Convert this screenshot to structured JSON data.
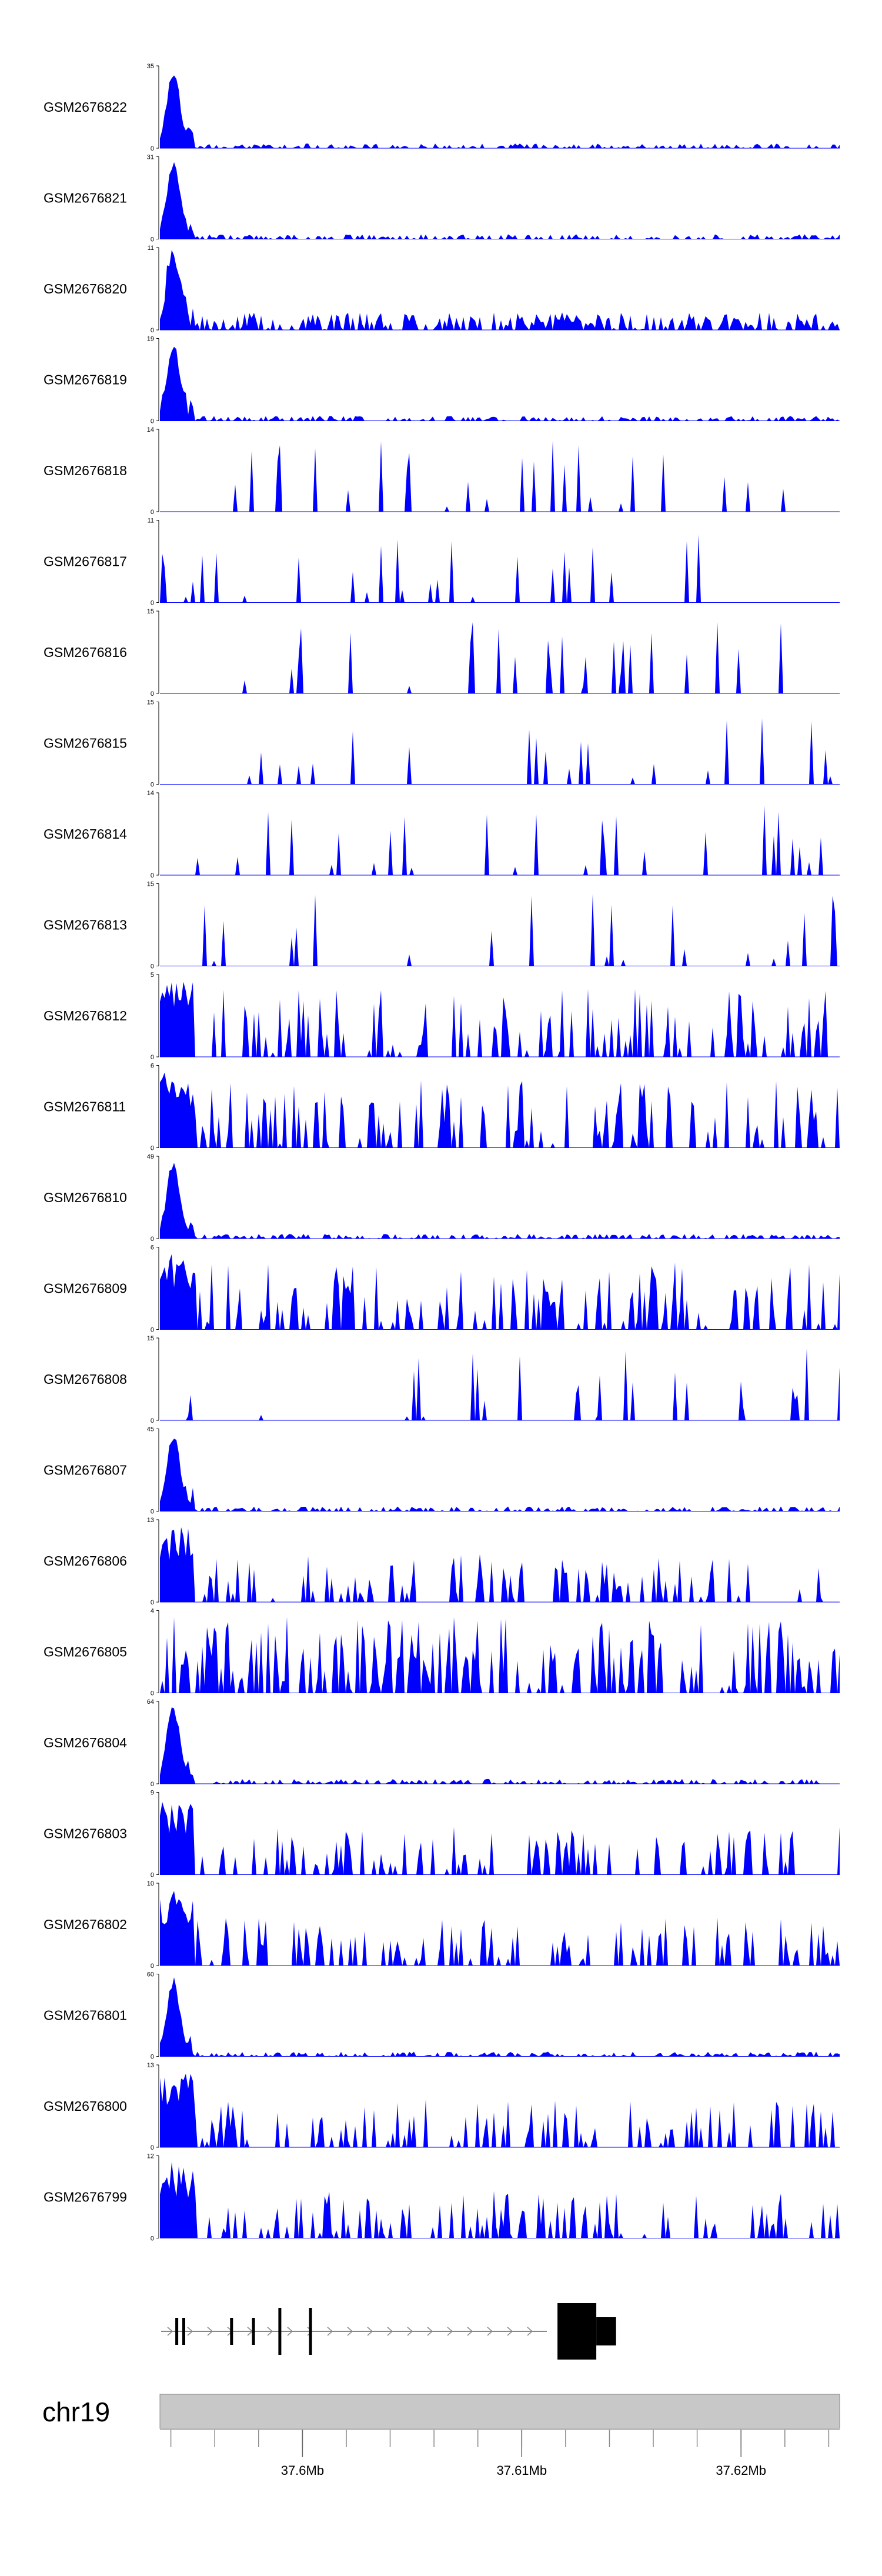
{
  "chart_data": {
    "type": "area",
    "title": "",
    "xlabel": "",
    "ylabel": "",
    "color": "#0000ff",
    "x_range_mb": [
      37.5935,
      37.6245
    ],
    "tracks": [
      {
        "name": "GSM2676822",
        "ymax": "35",
        "profile": "peak"
      },
      {
        "name": "GSM2676821",
        "ymax": "31",
        "profile": "peak"
      },
      {
        "name": "GSM2676820",
        "ymax": "11",
        "profile": "peak-noisy"
      },
      {
        "name": "GSM2676819",
        "ymax": "19",
        "profile": "peak"
      },
      {
        "name": "GSM2676818",
        "ymax": "14",
        "profile": "sparse"
      },
      {
        "name": "GSM2676817",
        "ymax": "11",
        "profile": "sparse"
      },
      {
        "name": "GSM2676816",
        "ymax": "15",
        "profile": "sparse"
      },
      {
        "name": "GSM2676815",
        "ymax": "15",
        "profile": "very-sparse"
      },
      {
        "name": "GSM2676814",
        "ymax": "14",
        "profile": "sparse"
      },
      {
        "name": "GSM2676813",
        "ymax": "15",
        "profile": "sparse"
      },
      {
        "name": "GSM2676812",
        "ymax": "5",
        "profile": "dense"
      },
      {
        "name": "GSM2676811",
        "ymax": "6",
        "profile": "dense"
      },
      {
        "name": "GSM2676810",
        "ymax": "49",
        "profile": "peak"
      },
      {
        "name": "GSM2676809",
        "ymax": "6",
        "profile": "dense"
      },
      {
        "name": "GSM2676808",
        "ymax": "15",
        "profile": "sparse"
      },
      {
        "name": "GSM2676807",
        "ymax": "45",
        "profile": "peak"
      },
      {
        "name": "GSM2676806",
        "ymax": "13",
        "profile": "medium"
      },
      {
        "name": "GSM2676805",
        "ymax": "4",
        "profile": "very-dense"
      },
      {
        "name": "GSM2676804",
        "ymax": "64",
        "profile": "peak"
      },
      {
        "name": "GSM2676803",
        "ymax": "9",
        "profile": "medium"
      },
      {
        "name": "GSM2676802",
        "ymax": "10",
        "profile": "medium"
      },
      {
        "name": "GSM2676801",
        "ymax": "60",
        "profile": "peak"
      },
      {
        "name": "GSM2676800",
        "ymax": "13",
        "profile": "medium"
      },
      {
        "name": "GSM2676799",
        "ymax": "12",
        "profile": "medium"
      }
    ],
    "gene_model": {
      "strand": "+",
      "exons_mb": [
        [
          37.5942,
          37.59427
        ],
        [
          37.59452,
          37.5946
        ],
        [
          37.5967,
          37.59677
        ],
        [
          37.5977,
          37.5978
        ],
        [
          37.5989,
          37.599
        ],
        [
          37.6003,
          37.60043
        ],
        [
          37.61163,
          37.6134
        ],
        [
          37.6134,
          37.6143
        ]
      ]
    },
    "chromosome": "chr19",
    "axis_ticks_mb": [
      37.594,
      37.596,
      37.598,
      37.6,
      37.602,
      37.604,
      37.606,
      37.608,
      37.61,
      37.612,
      37.614,
      37.616,
      37.618,
      37.62,
      37.622,
      37.624
    ],
    "axis_labels": [
      {
        "mb": 37.6,
        "text": "37.6Mb"
      },
      {
        "mb": 37.61,
        "text": "37.61Mb"
      },
      {
        "mb": 37.62,
        "text": "37.62Mb"
      }
    ]
  }
}
